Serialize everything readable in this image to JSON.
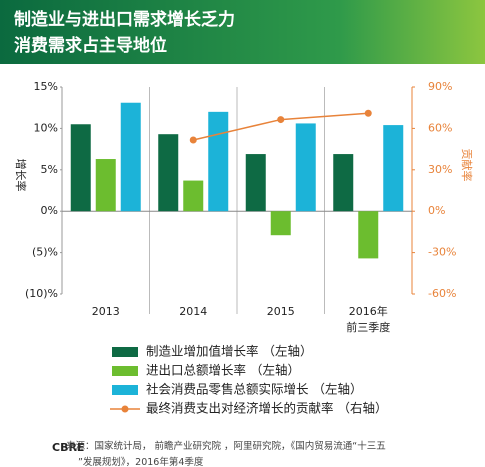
{
  "chart_data": {
    "type": "bar-line",
    "title": "制造业与进出口需求增长乏力",
    "subtitle": "消费需求占主导地位",
    "y_label": "增长率",
    "y2_label": "贡献率",
    "categories": [
      "2013",
      "2014",
      "2015",
      "2016年\n前三季度"
    ],
    "ylim": [
      -10,
      15
    ],
    "yticks": [
      {
        "value": 15,
        "label": "15%"
      },
      {
        "value": 10,
        "label": "10%"
      },
      {
        "value": 5,
        "label": "5%"
      },
      {
        "value": 0,
        "label": "0%"
      },
      {
        "value": -5,
        "label": "(5)%"
      },
      {
        "value": -10,
        "label": "(10)%"
      }
    ],
    "y2lim": [
      -60,
      90
    ],
    "y2ticks": [
      {
        "value": 90,
        "label": "90%"
      },
      {
        "value": 60,
        "label": "60%"
      },
      {
        "value": 30,
        "label": "30%"
      },
      {
        "value": 0,
        "label": "0%"
      },
      {
        "value": -30,
        "label": "-30%"
      },
      {
        "value": -60,
        "label": "-60%"
      }
    ],
    "series": [
      {
        "name": "制造业增加值增长率 （左轴）",
        "type": "bar",
        "color": "#0e6a44",
        "values": [
          10.5,
          9.3,
          6.9,
          6.9
        ]
      },
      {
        "name": "进出口总额增长率 （左轴）",
        "type": "bar",
        "color": "#6cbd2f",
        "values": [
          6.3,
          3.7,
          -2.9,
          -5.7
        ]
      },
      {
        "name": "社会消费品零售总额实际增长 （左轴）",
        "type": "bar",
        "color": "#1cb3d8",
        "values": [
          13.1,
          12.0,
          10.6,
          10.4
        ]
      },
      {
        "name": "最终消费支出对经济增长的贡献率 （右轴）",
        "type": "line",
        "axis": "y2",
        "color": "#e8833a",
        "values": [
          null,
          51.6,
          66.4,
          71.0
        ]
      }
    ],
    "source_logo": "CBRE",
    "source": "来源：国家统计局， 前瞻产业研究院 ，阿里研究院，《国内贸易流通“十三五”发展规划》，2016年第4季度"
  }
}
